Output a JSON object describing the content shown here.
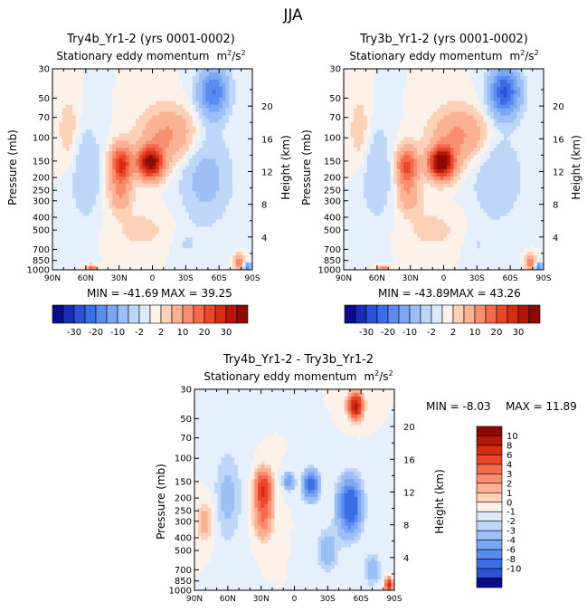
{
  "figure_title": "JJA",
  "colors": {
    "blues": [
      "#0a0a8c",
      "#1a2bb4",
      "#2c52d6",
      "#3a6ee6",
      "#5a8cf0",
      "#7aa6f4",
      "#9cc0f6",
      "#bed6f8",
      "#dcebfc"
    ],
    "reds": [
      "#fde9dc",
      "#fdd0b8",
      "#fbb294",
      "#f88e6e",
      "#f46a4c",
      "#ec4628",
      "#d62c14",
      "#b4160a",
      "#8c0a04"
    ],
    "neutral": "#ffffff"
  },
  "chart_data": [
    {
      "type": "heatmap",
      "id": "try4b",
      "title": "Try4b_Yr1-2 (yrs 0001-0002)",
      "subtitle": "Stationary eddy momentum",
      "units_base": "m",
      "units_exp": "2",
      "units_sep": "/s",
      "ylabel": "Pressure (mb)",
      "ylabel_right": "Height (km)",
      "xticks": [
        "90N",
        "60N",
        "30N",
        "0",
        "30S",
        "60S",
        "90S"
      ],
      "x_values": [
        90,
        60,
        30,
        0,
        -30,
        -60,
        -90
      ],
      "yticks": [
        "30",
        "50",
        "70",
        "100",
        "150",
        "200",
        "250",
        "300",
        "400",
        "500",
        "700",
        "850",
        "1000"
      ],
      "y_values": [
        30,
        50,
        70,
        100,
        150,
        200,
        250,
        300,
        400,
        500,
        700,
        850,
        1000
      ],
      "height_ticks": [
        "4",
        "8",
        "12",
        "16",
        "20"
      ],
      "height_values": [
        4,
        8,
        12,
        16,
        20
      ],
      "min_label": "MIN = -41.69",
      "max_label": "MAX =  39.25",
      "min": -41.69,
      "max": 39.25,
      "colorbar_labels": [
        "-30",
        "-20",
        "-10",
        "-2",
        "2",
        "10",
        "20",
        "30"
      ],
      "features": [
        {
          "lat": 28,
          "p": 160,
          "w": 9,
          "hd": 0.32,
          "amp": 27
        },
        {
          "lat": 29,
          "p": 270,
          "w": 10,
          "hd": 0.28,
          "amp": 9
        },
        {
          "lat": 2,
          "p": 155,
          "w": 11,
          "hd": 0.26,
          "amp": 39
        },
        {
          "lat": -14,
          "p": 95,
          "w": 24,
          "hd": 0.45,
          "amp": 11
        },
        {
          "lat": -55,
          "p": 45,
          "w": 13,
          "hd": 0.42,
          "amp": -20
        },
        {
          "lat": -48,
          "p": 200,
          "w": 22,
          "hd": 0.75,
          "amp": -7
        },
        {
          "lat": 60,
          "p": 180,
          "w": 14,
          "hd": 0.8,
          "amp": -5
        },
        {
          "lat": 75,
          "p": 90,
          "w": 10,
          "hd": 0.6,
          "amp": 4
        },
        {
          "lat": 55,
          "p": 1000,
          "w": 4,
          "hd": 0.06,
          "amp": 25
        },
        {
          "lat": -78,
          "p": 880,
          "w": 4,
          "hd": 0.12,
          "amp": 14
        },
        {
          "lat": -86,
          "p": 960,
          "w": 3,
          "hd": 0.08,
          "amp": -18
        },
        {
          "lat": 10,
          "p": 500,
          "w": 25,
          "hd": 0.35,
          "amp": 3
        },
        {
          "lat": -30,
          "p": 650,
          "w": 12,
          "hd": 0.3,
          "amp": -2
        }
      ]
    },
    {
      "type": "heatmap",
      "id": "try3b",
      "title": "Try3b_Yr1-2 (yrs 0001-0002)",
      "subtitle": "Stationary eddy momentum",
      "units_base": "m",
      "units_exp": "2",
      "units_sep": "/s",
      "ylabel": "Pressure (mb)",
      "ylabel_right": "Height (km)",
      "xticks": [
        "90N",
        "60N",
        "30N",
        "0",
        "30S",
        "60S",
        "90S"
      ],
      "x_values": [
        90,
        60,
        30,
        0,
        -30,
        -60,
        -90
      ],
      "yticks": [
        "30",
        "50",
        "70",
        "100",
        "150",
        "200",
        "250",
        "300",
        "400",
        "500",
        "700",
        "850",
        "1000"
      ],
      "y_values": [
        30,
        50,
        70,
        100,
        150,
        200,
        250,
        300,
        400,
        500,
        700,
        850,
        1000
      ],
      "height_ticks": [
        "4",
        "8",
        "12",
        "16",
        "20"
      ],
      "height_values": [
        4,
        8,
        12,
        16,
        20
      ],
      "min_label": "MIN = -43.89",
      "max_label": "MAX =  43.26",
      "min": -43.89,
      "max": 43.26,
      "colorbar_labels": [
        "-30",
        "-20",
        "-10",
        "-2",
        "2",
        "10",
        "20",
        "30"
      ],
      "features": [
        {
          "lat": 33,
          "p": 165,
          "w": 9,
          "hd": 0.32,
          "amp": 22
        },
        {
          "lat": 31,
          "p": 280,
          "w": 10,
          "hd": 0.28,
          "amp": 8
        },
        {
          "lat": 2,
          "p": 155,
          "w": 11,
          "hd": 0.26,
          "amp": 43
        },
        {
          "lat": -14,
          "p": 95,
          "w": 24,
          "hd": 0.45,
          "amp": 11
        },
        {
          "lat": -55,
          "p": 45,
          "w": 13,
          "hd": 0.42,
          "amp": -26
        },
        {
          "lat": -48,
          "p": 200,
          "w": 22,
          "hd": 0.75,
          "amp": -5
        },
        {
          "lat": 60,
          "p": 180,
          "w": 14,
          "hd": 0.8,
          "amp": -5
        },
        {
          "lat": 75,
          "p": 90,
          "w": 10,
          "hd": 0.6,
          "amp": 4
        },
        {
          "lat": 55,
          "p": 1000,
          "w": 4,
          "hd": 0.06,
          "amp": 20
        },
        {
          "lat": -78,
          "p": 880,
          "w": 4,
          "hd": 0.12,
          "amp": 14
        },
        {
          "lat": -86,
          "p": 960,
          "w": 3,
          "hd": 0.08,
          "amp": -18
        },
        {
          "lat": 10,
          "p": 500,
          "w": 25,
          "hd": 0.35,
          "amp": 3
        },
        {
          "lat": -30,
          "p": 650,
          "w": 12,
          "hd": 0.3,
          "amp": -2
        }
      ]
    },
    {
      "type": "heatmap",
      "id": "diff",
      "title": "Try4b_Yr1-2 - Try3b_Yr1-2",
      "subtitle": "Stationary eddy momentum",
      "units_base": "m",
      "units_exp": "2",
      "units_sep": "/s",
      "ylabel": "Pressure (mb)",
      "ylabel_right": "Height (km)",
      "xticks": [
        "90N",
        "60N",
        "30N",
        "0",
        "30S",
        "60S",
        "90S"
      ],
      "x_values": [
        90,
        60,
        30,
        0,
        -30,
        -60,
        -90
      ],
      "yticks": [
        "30",
        "50",
        "70",
        "100",
        "150",
        "200",
        "250",
        "300",
        "400",
        "500",
        "700",
        "850",
        "1000"
      ],
      "y_values": [
        30,
        50,
        70,
        100,
        150,
        200,
        250,
        300,
        400,
        500,
        700,
        850,
        1000
      ],
      "height_ticks": [
        "4",
        "8",
        "12",
        "16",
        "20"
      ],
      "height_values": [
        4,
        8,
        12,
        16,
        20
      ],
      "min_label": "MIN =  -8.03",
      "max_label": "MAX =  11.89",
      "min": -8.03,
      "max": 11.89,
      "colorbar_labels": [
        "10",
        "8",
        "6",
        "4",
        "3",
        "2",
        "1",
        "0",
        "-1",
        "-2",
        "-3",
        "-4",
        "-6",
        "-8",
        "-10"
      ],
      "colorbar_values": [
        10,
        8,
        6,
        4,
        3,
        2,
        1,
        0,
        -1,
        -2,
        -3,
        -4,
        -6,
        -8,
        -10
      ],
      "features": [
        {
          "lat": 28,
          "p": 170,
          "w": 7,
          "hd": 0.3,
          "amp": 6
        },
        {
          "lat": 28,
          "p": 280,
          "w": 8,
          "hd": 0.35,
          "amp": 3
        },
        {
          "lat": 5,
          "p": 150,
          "w": 5,
          "hd": 0.15,
          "amp": -3
        },
        {
          "lat": -15,
          "p": 160,
          "w": 7,
          "hd": 0.25,
          "amp": -5
        },
        {
          "lat": -50,
          "p": 230,
          "w": 10,
          "hd": 0.45,
          "amp": -6
        },
        {
          "lat": -55,
          "p": 40,
          "w": 6,
          "hd": 0.2,
          "amp": 9
        },
        {
          "lat": -85,
          "p": 900,
          "w": 3,
          "hd": 0.1,
          "amp": 8
        },
        {
          "lat": 60,
          "p": 200,
          "w": 14,
          "hd": 0.9,
          "amp": -1.2
        },
        {
          "lat": -30,
          "p": 500,
          "w": 10,
          "hd": 0.4,
          "amp": -1.5
        },
        {
          "lat": 80,
          "p": 300,
          "w": 8,
          "hd": 0.4,
          "amp": 1.5
        },
        {
          "lat": -70,
          "p": 700,
          "w": 8,
          "hd": 0.3,
          "amp": -1.5
        }
      ]
    }
  ]
}
